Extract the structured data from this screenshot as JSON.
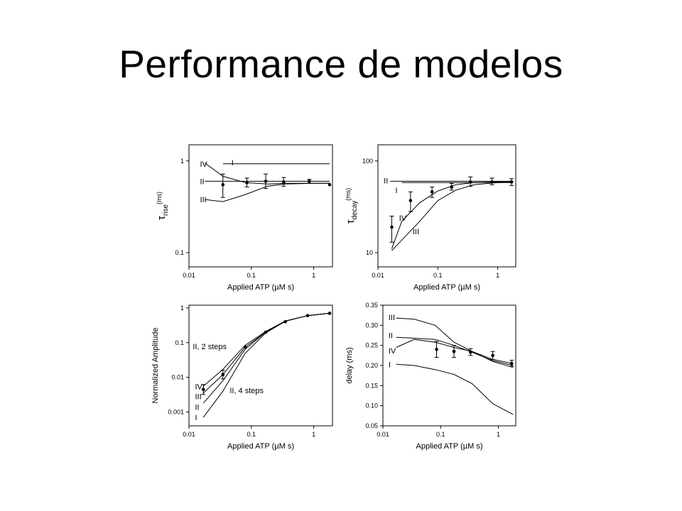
{
  "slide": {
    "title": "Performance de modelos"
  },
  "chart_data": [
    {
      "type": "line",
      "panel": "top-left",
      "xlabel": "Applied ATP (µM s)",
      "ylabel": "τ",
      "ylabel_sub": "rise",
      "ylabel_sup": "(ms)",
      "xscale": "log",
      "yscale": "log",
      "xlim": [
        0.01,
        2
      ],
      "ylim": [
        0.07,
        1.5
      ],
      "xticks": [
        {
          "v": 0.01,
          "t": "0.01"
        },
        {
          "v": 0.1,
          "t": "0.1"
        },
        {
          "v": 1,
          "t": "1"
        }
      ],
      "yticks": [
        {
          "v": 0.1,
          "t": "0.1"
        },
        {
          "v": 1,
          "t": "1"
        }
      ],
      "grid": false,
      "series": [
        {
          "name": "I",
          "x": [
            0.035,
            1.8
          ],
          "y": [
            0.93,
            0.93
          ],
          "label_at": [
            0.048,
            0.96
          ]
        },
        {
          "name": "II",
          "x": [
            0.018,
            1.8
          ],
          "y": [
            0.6,
            0.6
          ],
          "label_at": [
            0.015,
            0.6
          ]
        },
        {
          "name": "III",
          "x": [
            0.018,
            0.035,
            0.08,
            0.18,
            0.35,
            1.0,
            1.8
          ],
          "y": [
            0.38,
            0.36,
            0.43,
            0.53,
            0.56,
            0.57,
            0.57
          ],
          "label_at": [
            0.015,
            0.38
          ]
        },
        {
          "name": "IV",
          "x": [
            0.018,
            0.035,
            0.08,
            0.18,
            0.35,
            1.0,
            1.8
          ],
          "y": [
            0.95,
            0.68,
            0.58,
            0.56,
            0.57,
            0.57,
            0.57
          ],
          "label_at": [
            0.015,
            0.93
          ]
        }
      ],
      "points": [
        {
          "x": 0.035,
          "y": 0.55,
          "err": [
            0.4,
            0.72
          ]
        },
        {
          "x": 0.085,
          "y": 0.58,
          "err": [
            0.52,
            0.65
          ]
        },
        {
          "x": 0.17,
          "y": 0.6,
          "err": [
            0.5,
            0.72
          ]
        },
        {
          "x": 0.33,
          "y": 0.59,
          "err": [
            0.53,
            0.66
          ]
        },
        {
          "x": 0.85,
          "y": 0.6,
          "err": [
            0.57,
            0.63
          ]
        },
        {
          "x": 1.8,
          "y": 0.55
        }
      ]
    },
    {
      "type": "line",
      "panel": "top-right",
      "xlabel": "Applied ATP (µM s)",
      "ylabel": "τ",
      "ylabel_sub": "decay",
      "ylabel_sup": "(ms)",
      "xscale": "log",
      "yscale": "log",
      "xlim": [
        0.01,
        2
      ],
      "ylim": [
        7,
        150
      ],
      "xticks": [
        {
          "v": 0.01,
          "t": "0.01"
        },
        {
          "v": 0.1,
          "t": "0.1"
        },
        {
          "v": 1,
          "t": "1"
        }
      ],
      "yticks": [
        {
          "v": 10,
          "t": "10"
        },
        {
          "v": 100,
          "t": "100"
        }
      ],
      "grid": false,
      "series": [
        {
          "name": "II",
          "x": [
            0.016,
            1.8
          ],
          "y": [
            60,
            60
          ],
          "label_at": [
            0.0125,
            61
          ]
        },
        {
          "name": "I",
          "x": [
            0.025,
            1.8
          ],
          "y": [
            58,
            58
          ],
          "label_at": [
            0.0195,
            48
          ]
        },
        {
          "name": "IV",
          "x": [
            0.017,
            0.025,
            0.05,
            0.1,
            0.2,
            0.4,
            1.0,
            1.8
          ],
          "y": [
            11,
            22,
            35,
            47,
            55,
            58,
            59,
            59
          ],
          "label_at": [
            0.0225,
            24
          ]
        },
        {
          "name": "III",
          "x": [
            0.017,
            0.05,
            0.1,
            0.2,
            0.4,
            1.0,
            1.8
          ],
          "y": [
            10.5,
            22,
            37,
            48,
            55,
            58,
            59
          ],
          "label_at": [
            0.038,
            17
          ]
        }
      ],
      "points": [
        {
          "x": 0.017,
          "y": 19,
          "err": [
            13,
            25
          ]
        },
        {
          "x": 0.035,
          "y": 37,
          "err": [
            28,
            46
          ]
        },
        {
          "x": 0.08,
          "y": 46,
          "err": [
            40,
            52
          ]
        },
        {
          "x": 0.17,
          "y": 52,
          "err": [
            48,
            57
          ]
        },
        {
          "x": 0.35,
          "y": 59,
          "err": [
            53,
            67
          ]
        },
        {
          "x": 0.8,
          "y": 59,
          "err": [
            55,
            65
          ]
        },
        {
          "x": 1.7,
          "y": 59,
          "err": [
            54,
            64
          ]
        }
      ]
    },
    {
      "type": "line",
      "panel": "bottom-left",
      "xlabel": "Applied ATP (µM s)",
      "ylabel": "Normalized Amplitude",
      "xscale": "log",
      "yscale": "log",
      "xlim": [
        0.01,
        2
      ],
      "ylim": [
        0.0004,
        1.2
      ],
      "xticks": [
        {
          "v": 0.01,
          "t": "0.01"
        },
        {
          "v": 0.1,
          "t": "0.1"
        },
        {
          "v": 1,
          "t": "1"
        }
      ],
      "yticks": [
        {
          "v": 0.001,
          "t": "0.001"
        },
        {
          "v": 0.01,
          "t": "0.01"
        },
        {
          "v": 0.1,
          "t": "0.1"
        },
        {
          "v": 1,
          "t": "1"
        }
      ],
      "grid": false,
      "annotations": [
        {
          "text": "II, 2 steps",
          "at": [
            0.0115,
            0.065
          ]
        },
        {
          "text": "II, 4 steps",
          "at": [
            0.045,
            0.0035
          ]
        }
      ],
      "series": [
        {
          "name": "IV",
          "x": [
            0.017,
            0.035,
            0.08,
            0.17,
            0.35,
            0.8,
            1.8
          ],
          "y": [
            0.0055,
            0.017,
            0.085,
            0.21,
            0.42,
            0.6,
            0.7
          ],
          "label_at": [
            0.0125,
            0.0055
          ]
        },
        {
          "name": "III",
          "x": [
            0.017,
            0.035,
            0.08,
            0.17,
            0.35,
            0.8,
            1.8
          ],
          "y": [
            0.0035,
            0.012,
            0.075,
            0.2,
            0.42,
            0.6,
            0.7
          ],
          "label_at": [
            0.0125,
            0.0028
          ]
        },
        {
          "name": "II",
          "x": [
            0.017,
            0.035,
            0.08,
            0.17,
            0.35,
            0.8,
            1.8
          ],
          "y": [
            0.0018,
            0.008,
            0.065,
            0.2,
            0.42,
            0.6,
            0.7
          ],
          "label_at": [
            0.0125,
            0.0014
          ]
        },
        {
          "name": "I",
          "x": [
            0.017,
            0.035,
            0.08,
            0.17,
            0.35,
            0.8,
            1.8
          ],
          "y": [
            0.0007,
            0.004,
            0.05,
            0.19,
            0.41,
            0.6,
            0.7
          ],
          "label_at": [
            0.0125,
            0.0007
          ]
        }
      ],
      "points": [
        {
          "x": 0.017,
          "y": 0.0045,
          "err": [
            0.0032,
            0.0062
          ]
        },
        {
          "x": 0.035,
          "y": 0.012,
          "err": [
            0.009,
            0.016
          ]
        },
        {
          "x": 0.08,
          "y": 0.075
        },
        {
          "x": 0.17,
          "y": 0.2
        },
        {
          "x": 0.35,
          "y": 0.4
        },
        {
          "x": 0.8,
          "y": 0.6
        },
        {
          "x": 1.8,
          "y": 0.7
        }
      ]
    },
    {
      "type": "line",
      "panel": "bottom-right",
      "xlabel": "Applied ATP (µM s)",
      "ylabel": "delay (ms)",
      "xscale": "log",
      "yscale": "linear",
      "xlim": [
        0.01,
        2
      ],
      "ylim": [
        0.05,
        0.35
      ],
      "xticks": [
        {
          "v": 0.01,
          "t": "0.01"
        },
        {
          "v": 0.1,
          "t": "0.1"
        },
        {
          "v": 1,
          "t": "1"
        }
      ],
      "yticks": [
        {
          "v": 0.05,
          "t": "0.05"
        },
        {
          "v": 0.1,
          "t": "0.10"
        },
        {
          "v": 0.15,
          "t": "0.15"
        },
        {
          "v": 0.2,
          "t": "0.20"
        },
        {
          "v": 0.25,
          "t": "0.25"
        },
        {
          "v": 0.3,
          "t": "0.30"
        },
        {
          "v": 0.35,
          "t": "0.35"
        }
      ],
      "grid": false,
      "series": [
        {
          "name": "III",
          "x": [
            0.017,
            0.035,
            0.08,
            0.17,
            0.35,
            0.8,
            1.8
          ],
          "y": [
            0.318,
            0.315,
            0.3,
            0.258,
            0.235,
            0.21,
            0.195
          ],
          "label_at": [
            0.0125,
            0.32
          ]
        },
        {
          "name": "II",
          "x": [
            0.017,
            0.035,
            0.08,
            0.17,
            0.35,
            0.8,
            1.8
          ],
          "y": [
            0.27,
            0.268,
            0.265,
            0.25,
            0.233,
            0.212,
            0.2
          ],
          "label_at": [
            0.0125,
            0.275
          ]
        },
        {
          "name": "IV",
          "x": [
            0.017,
            0.035,
            0.08,
            0.17,
            0.35,
            0.8,
            1.8
          ],
          "y": [
            0.245,
            0.265,
            0.258,
            0.245,
            0.235,
            0.215,
            0.205
          ],
          "label_at": [
            0.0125,
            0.237
          ]
        },
        {
          "name": "I",
          "x": [
            0.017,
            0.035,
            0.08,
            0.17,
            0.35,
            0.8,
            1.8
          ],
          "y": [
            0.203,
            0.2,
            0.19,
            0.178,
            0.155,
            0.105,
            0.078
          ],
          "label_at": [
            0.0125,
            0.203
          ]
        }
      ],
      "points": [
        {
          "x": 0.085,
          "y": 0.24,
          "err": [
            0.22,
            0.26
          ]
        },
        {
          "x": 0.17,
          "y": 0.235,
          "err": [
            0.22,
            0.25
          ]
        },
        {
          "x": 0.33,
          "y": 0.233,
          "err": [
            0.225,
            0.242
          ]
        },
        {
          "x": 0.8,
          "y": 0.225,
          "err": [
            0.215,
            0.235
          ]
        },
        {
          "x": 1.7,
          "y": 0.205,
          "err": [
            0.198,
            0.213
          ]
        }
      ]
    }
  ]
}
